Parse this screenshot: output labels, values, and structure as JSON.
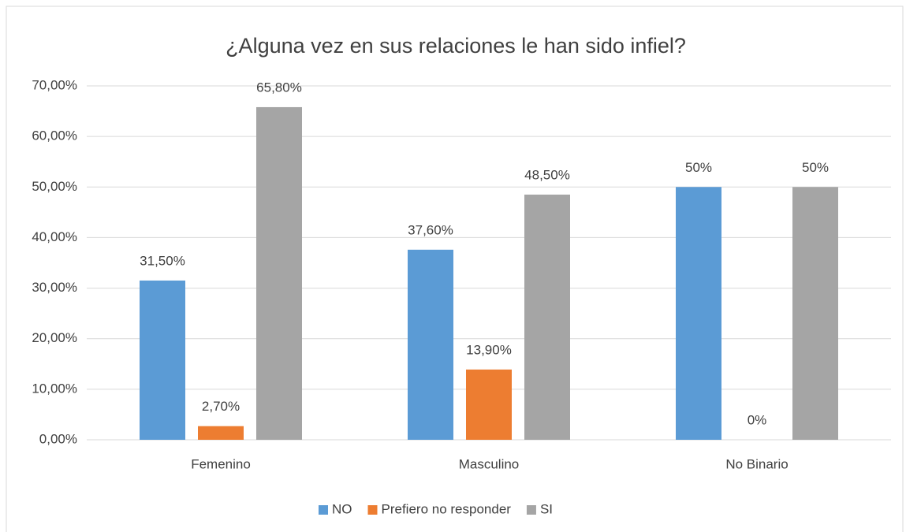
{
  "chart_data": {
    "type": "bar",
    "title": "¿Alguna vez en sus relaciones le han sido infiel?",
    "categories": [
      "Femenino",
      "Masculino",
      "No Binario"
    ],
    "series": [
      {
        "name": "NO",
        "color": "#5b9bd5",
        "values": [
          31.5,
          37.6,
          50
        ],
        "value_labels": [
          "31,50%",
          "37,60%",
          "50%"
        ]
      },
      {
        "name": "Prefiero no responder",
        "color": "#ed7d31",
        "values": [
          2.7,
          13.9,
          0
        ],
        "value_labels": [
          "2,70%",
          "13,90%",
          "0%"
        ]
      },
      {
        "name": "SI",
        "color": "#a5a5a5",
        "values": [
          65.8,
          48.5,
          50
        ],
        "value_labels": [
          "65,80%",
          "48,50%",
          "50%"
        ]
      }
    ],
    "ylim": [
      0,
      70
    ],
    "yticks": [
      {
        "value": 0,
        "label": "0,00%"
      },
      {
        "value": 10,
        "label": "10,00%"
      },
      {
        "value": 20,
        "label": "20,00%"
      },
      {
        "value": 30,
        "label": "30,00%"
      },
      {
        "value": 40,
        "label": "40,00%"
      },
      {
        "value": 50,
        "label": "50,00%"
      },
      {
        "value": 60,
        "label": "60,00%"
      },
      {
        "value": 70,
        "label": "70,00%"
      }
    ],
    "grid": true,
    "legend": "bottom"
  }
}
